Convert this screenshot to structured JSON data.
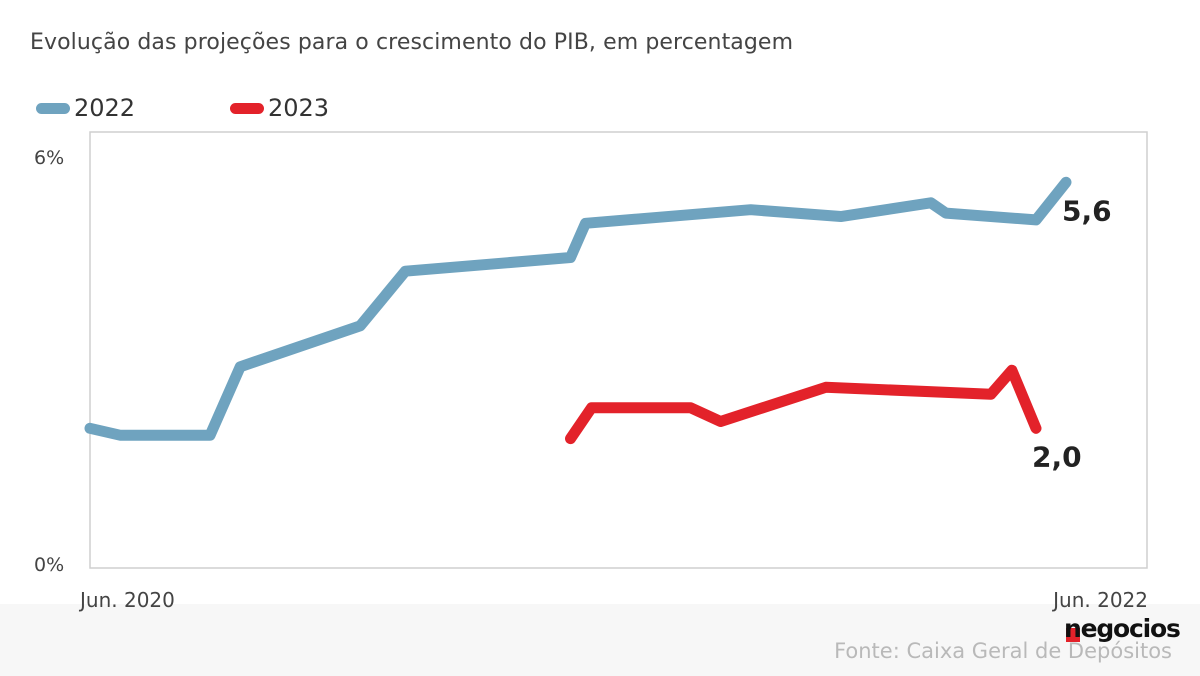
{
  "chart_data": {
    "type": "line",
    "title": "Evolução das projeções para o crescimento do PIB, em percentagem",
    "ylim": [
      0,
      6
    ],
    "y_tick_labels": [
      "6%",
      "0%"
    ],
    "x_tick_labels": [
      "Jun. 2020",
      "Jun. 2022"
    ],
    "grid": false,
    "legend_position": "top-left",
    "series": [
      {
        "name": "2022",
        "color": "#6fa3bf",
        "points": [
          [
            0.0,
            2.0
          ],
          [
            1.0,
            1.9
          ],
          [
            4.0,
            1.9
          ],
          [
            5.0,
            2.9
          ],
          [
            9.0,
            3.5
          ],
          [
            10.5,
            4.3
          ],
          [
            16.0,
            4.5
          ],
          [
            16.5,
            5.0
          ],
          [
            22.0,
            5.2
          ],
          [
            25.0,
            5.1
          ],
          [
            28.0,
            5.3
          ],
          [
            28.5,
            5.15
          ],
          [
            31.5,
            5.05
          ],
          [
            32.5,
            5.6
          ]
        ],
        "end_label": "5,6"
      },
      {
        "name": "2023",
        "color": "#e3222a",
        "points": [
          [
            16.0,
            1.85
          ],
          [
            16.7,
            2.3
          ],
          [
            20.0,
            2.3
          ],
          [
            21.0,
            2.1
          ],
          [
            24.5,
            2.6
          ],
          [
            30.0,
            2.5
          ],
          [
            30.7,
            2.85
          ],
          [
            31.5,
            2.0
          ]
        ],
        "end_label": "2,0"
      }
    ]
  },
  "source_text": "Fonte: Caixa Geral de Depósitos",
  "logo_text": "negocios"
}
